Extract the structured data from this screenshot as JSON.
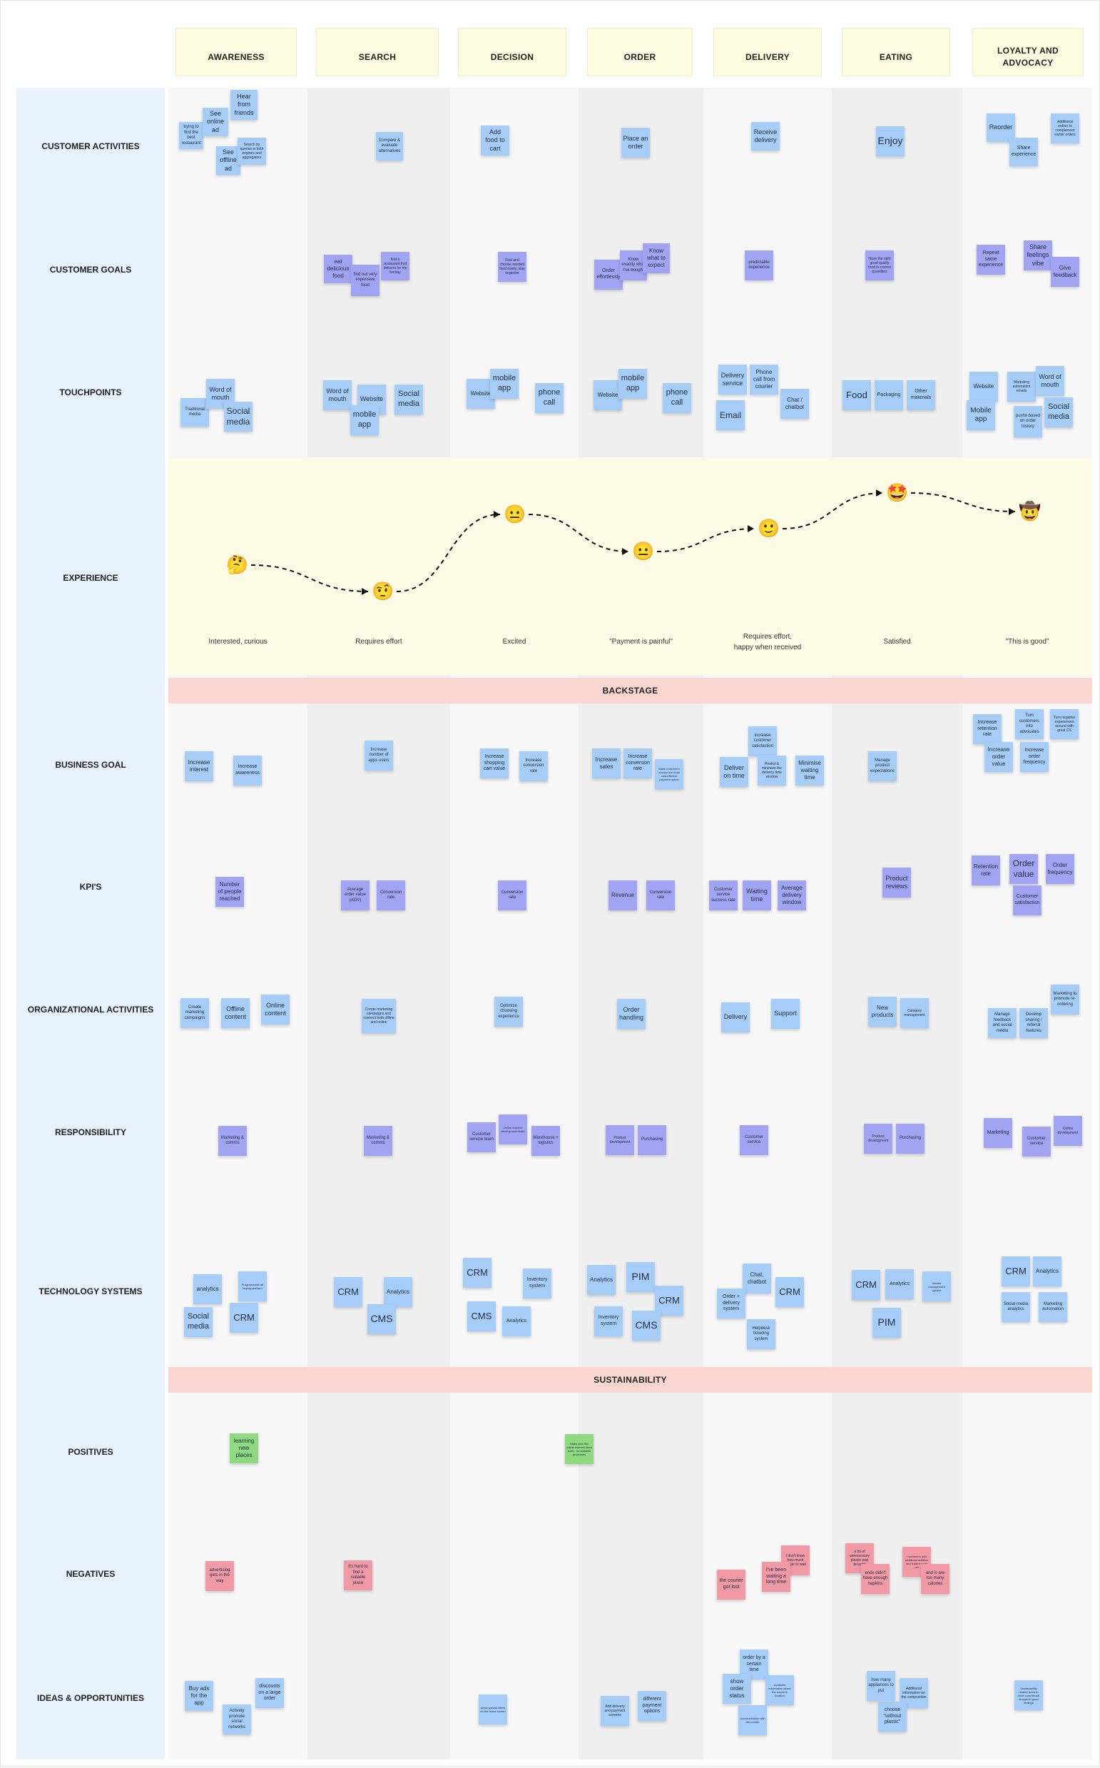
{
  "stages": [
    "AWARENESS",
    "SEARCH",
    "DECISION",
    "ORDER",
    "DELIVERY",
    "EATING",
    "LOYALTY AND ADVOCACY"
  ],
  "backstage_label": "BACKSTAGE",
  "sustainability_label": "SUSTAINABILITY",
  "rows": [
    "CUSTOMER ACTIVITIES",
    "CUSTOMER GOALS",
    "TOUCHPOINTS",
    "EXPERIENCE",
    "BUSINESS GOAL",
    "KPI'S",
    "ORGANIZATIONAL ACTIVITIES",
    "RESPONSIBILITY",
    "TECHNOLOGY SYSTEMS",
    "POSITIVES",
    "NEGATIVES",
    "IDEAS & OPPORTUNITIES"
  ],
  "experience": [
    {
      "emoji": "🤔",
      "label": "Interested, curious",
      "level": 2
    },
    {
      "emoji": "🤨",
      "label": "Requires effort",
      "level": 1
    },
    {
      "emoji": "😐",
      "label": "Excited",
      "level": 4
    },
    {
      "emoji": "😐",
      "label": "\"Payment is painful\"",
      "level": 3
    },
    {
      "emoji": "🙂",
      "label": "Requires effort, happy when received",
      "level": 3.5
    },
    {
      "emoji": "🤩",
      "label": "Satisfied",
      "level": 5
    },
    {
      "emoji": "🤠",
      "label": "\"This is good\"",
      "level": 4.5
    }
  ],
  "colors": {
    "blue": "#a6cdf7",
    "purple": "#a0a4f3",
    "green": "#8fd980",
    "red": "#f19aa6",
    "stage": "#fdfbe0",
    "band": "#fad6d1",
    "labels": "#e8f3fd"
  },
  "notes": {
    "activities": [
      "trying to find the best restaurant",
      "See online ad",
      "Hear from friends",
      "See offline ad",
      "Search by queries in both engines and aggregators",
      "Compare & evaluate alternatives",
      "Add food to cart",
      "Place an order",
      "Receive delivery",
      "Enjoy",
      "Reorder",
      "Share experience",
      "Additional orders to complement earlier orders"
    ],
    "goals": [
      "eat delicious food",
      "find out very expensive food",
      "find a restaurant that delivers for my liveday",
      "Find and choose needed food easily, stay organize",
      "Order effortlessly",
      "Know exactly what I've bought",
      "Know what to expect",
      "predictable experience",
      "Have the right good quality food in correct quantities",
      "Repeat same experience",
      "Share feelings vibe",
      "Give feedback"
    ],
    "touchpoints": [
      "Traditional media",
      "Word of mouth",
      "Social media",
      "Word of mouth",
      "Website",
      "mobile app",
      "Social media",
      "Website",
      "mobile app",
      "phone call",
      "Website",
      "mobile app",
      "phone call",
      "Delivery service",
      "Phone call from courier",
      "Email",
      "Chat / chatbot",
      "Food",
      "Packaging",
      "Other materials",
      "Website",
      "Marketing automation emails",
      "Word of mouth",
      "Mobile app",
      "Social media",
      "pushs based on order history"
    ],
    "business": [
      "Increase interest",
      "Increase awareness",
      "Increase number of apps users",
      "Increase shopping cart value",
      "Increase conversion rate",
      "Increase sales",
      "Increase conversion rate",
      "Make customers choose the most cost-efficient payment option",
      "Increase customer satisfaction",
      "Deliver on time",
      "Predict & minimize the delivery time window",
      "Minimise waiting time",
      "Manage product expectations",
      "Increase retention rate",
      "Turn customers into advocates",
      "Turn negative experiences around with great CS",
      "Increase order value",
      "Increase order frequency"
    ],
    "kpi": [
      "Number of people reached",
      "Average order value (AOV)",
      "Conversion rate",
      "Conversion rate",
      "Revenue",
      "Conversion rate",
      "Customer service success rate",
      "Waiting time",
      "Average delivery window",
      "Product reviews",
      "Retention rate",
      "Order value",
      "Order frequency",
      "Customer satisfaction"
    ],
    "org": [
      "Create marketing campaigns",
      "Offline content",
      "Online content",
      "Create marketing campaigns and connect both offline and online",
      "Optimize choosing experience",
      "Order handling",
      "Delivery",
      "Support",
      "New products",
      "Category management",
      "Manage feedback and social media",
      "Develop sharing / referral features",
      "Marketing to promote re-ordering"
    ],
    "resp": [
      "Marketing & comms",
      "Marketing & comms",
      "Customer service team",
      "Online channel development team",
      "Warehouse + logistics",
      "Product development",
      "Purchasing",
      "Customer service",
      "Product development",
      "Purchasing",
      "Marketing",
      "Customer service",
      "Online development"
    ],
    "tech": [
      "analytics",
      "Programmatic ad buying platform",
      "Social media",
      "CRM",
      "CRM",
      "Analytics",
      "CMS",
      "CRM",
      "Inventory system",
      "CMS",
      "Analytics",
      "Analytics",
      "PIM",
      "CRM",
      "Inventory system",
      "CMS",
      "Chat, chatbot",
      "Order + delivery system",
      "CRM",
      "Helpdesk ticketing system",
      "CRM",
      "Analytics",
      "Vendor management system",
      "PIM",
      "CRM",
      "Analytics",
      "Social media analytics",
      "Marketing automation"
    ],
    "positives": [
      "learning new places",
      "Make sure the online channel store work - no wasteful processes"
    ],
    "negatives": [
      "advertising gets in the way",
      "it's hard to find a suitable place",
      "I don't know how much longer to wait",
      "I've been waiting a long time",
      "the courier got lost",
      "a lot of unnecessary plastic was brought",
      "ends didn't have enough napkins",
      "I wanted to add additional addition and it didn't work out",
      "and is are too many calories"
    ],
    "ideas": [
      "Buy ads for the app",
      "discounts on a large order",
      "Actively promote social networks",
      "show special offers on the home screen",
      "Add delivery and payment screens",
      "different payment options",
      "order by a certain time",
      "show order status",
      "Available information about the courier's location",
      "communication with the courier",
      "how many appliances to put",
      "Additional information on the composition",
      "choose \"without plastic\"",
      "Sustainability related icons to meet commercial shoppers' good feelings"
    ]
  }
}
